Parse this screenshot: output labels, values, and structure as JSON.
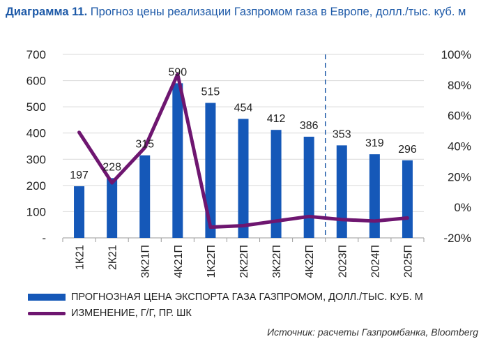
{
  "title": {
    "bold": "Диаграмма 11.",
    "text": "Прогноз цены реализации Газпромом газа в Европе, долл./тыс. куб. м"
  },
  "legend": {
    "bar_label": "ПРОГНОЗНАЯ ЦЕНА ЭКСПОРТА ГАЗА ГАЗПРОМОМ, ДОЛЛ./ТЫС. КУБ. М",
    "line_label": "ИЗМЕНЕНИЕ, Г/Г, ПР. ШК"
  },
  "source": "Источник: расчеты Газпромбанка, Bloomberg",
  "colors": {
    "bar": "#1558b8",
    "line": "#6e1670",
    "divider": "#1e5aa8",
    "grid": "#d9d9d9"
  },
  "chart_data": {
    "type": "bar",
    "categories": [
      "1К21",
      "2К21",
      "3К21П",
      "4К21П",
      "1К22П",
      "2К22П",
      "3К22П",
      "4К22П",
      "2023П",
      "2024П",
      "2025П"
    ],
    "series": [
      {
        "name": "ПРОГНОЗНАЯ ЦЕНА ЭКСПОРТА ГАЗА ГАЗПРОМОМ, ДОЛЛ./ТЫС. КУБ. М",
        "type": "bar",
        "axis": "left",
        "values": [
          197,
          228,
          315,
          590,
          515,
          454,
          412,
          386,
          353,
          319,
          296
        ]
      },
      {
        "name": "ИЗМЕНЕНИЕ, Г/Г, ПР. ШК",
        "type": "line",
        "axis": "right",
        "values": [
          49,
          16,
          39,
          87,
          -13,
          -12,
          -9,
          -6,
          -8,
          -9,
          -7
        ]
      }
    ],
    "ylim_left": [
      0,
      700
    ],
    "ylim_right": [
      -20,
      100
    ],
    "yticks_left": [
      "-",
      "100",
      "200",
      "300",
      "400",
      "500",
      "600",
      "700"
    ],
    "yticks_right": [
      "-20%",
      "0%",
      "20%",
      "40%",
      "60%",
      "80%",
      "100%"
    ],
    "grid": true,
    "divider_after_category": "4К22П",
    "legend_position": "bottom"
  }
}
